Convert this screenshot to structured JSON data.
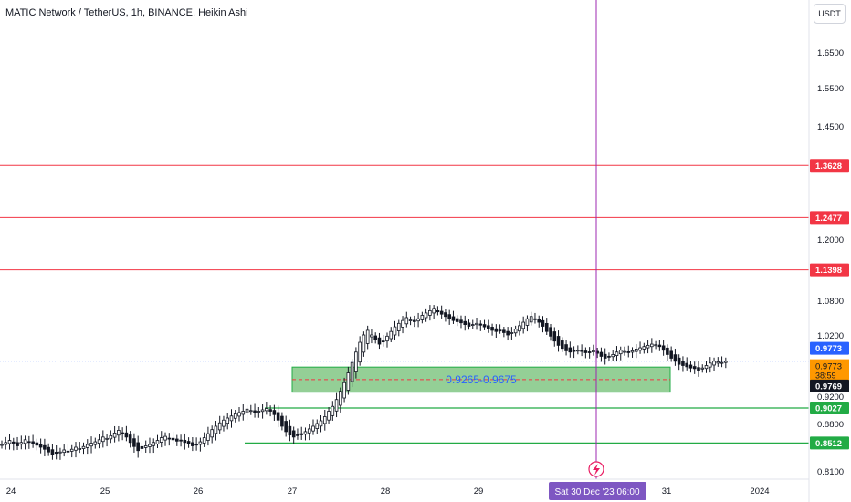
{
  "header": {
    "title": "MATIC Network / TetherUS, 1h, BINANCE, Heikin Ashi",
    "currency_button": "USDT"
  },
  "crosshair": {
    "time_label": "Sat 30 Dec '23   06:00"
  },
  "colors": {
    "resistance": "#f23645",
    "support": "#22ab45",
    "zone_fill": "#4caf50",
    "zone_text": "#2962ff",
    "crosshair": "#9c27b0",
    "last_price": "#2962ff",
    "countdown": "#ff9800",
    "up_candle": "#ffffff",
    "down_candle": "#131722"
  },
  "chart_data": {
    "type": "candlestick",
    "symbol": "MATIC Network / TetherUS",
    "interval": "1h",
    "exchange": "BINANCE",
    "style": "Heikin Ashi",
    "y_axis_ticks": [
      "1.6500",
      "1.5500",
      "1.4500",
      "1.2000",
      "1.0800",
      "1.0200",
      "0.9200",
      "0.8800",
      "0.8100"
    ],
    "x_axis_ticks": [
      "24",
      "25",
      "26",
      "27",
      "28",
      "29",
      "31",
      "2024"
    ],
    "resistance_levels": [
      {
        "value": 1.3628,
        "label": "1.3628"
      },
      {
        "value": 1.2477,
        "label": "1.2477"
      },
      {
        "value": 1.1398,
        "label": "1.1398"
      }
    ],
    "support_levels": [
      {
        "value": 0.9027,
        "label": "0.9027"
      },
      {
        "value": 0.8512,
        "label": "0.8512"
      }
    ],
    "zone": {
      "low": 0.9265,
      "high": 0.9675,
      "label": "0.9265-0.9675"
    },
    "last_price": {
      "value": 0.9773,
      "label": "0.9773"
    },
    "current_candle": {
      "value": 0.9773,
      "label": "0.9773",
      "countdown": "38:59"
    },
    "crosshair_price": {
      "value": 0.9769,
      "label": "0.9769"
    },
    "candles_hourly_close": [
      0.849,
      0.852,
      0.855,
      0.851,
      0.847,
      0.852,
      0.856,
      0.853,
      0.85,
      0.848,
      0.845,
      0.842,
      0.838,
      0.834,
      0.836,
      0.838,
      0.841,
      0.839,
      0.842,
      0.845,
      0.843,
      0.846,
      0.849,
      0.851,
      0.853,
      0.856,
      0.86,
      0.858,
      0.862,
      0.866,
      0.87,
      0.866,
      0.86,
      0.852,
      0.846,
      0.84,
      0.843,
      0.847,
      0.849,
      0.852,
      0.855,
      0.859,
      0.861,
      0.858,
      0.856,
      0.854,
      0.855,
      0.852,
      0.85,
      0.847,
      0.849,
      0.853,
      0.859,
      0.865,
      0.871,
      0.876,
      0.881,
      0.885,
      0.888,
      0.891,
      0.894,
      0.896,
      0.898,
      0.901,
      0.899,
      0.896,
      0.898,
      0.9,
      0.902,
      0.898,
      0.893,
      0.885,
      0.876,
      0.868,
      0.863,
      0.86,
      0.862,
      0.865,
      0.868,
      0.872,
      0.876,
      0.88,
      0.884,
      0.89,
      0.898,
      0.905,
      0.915,
      0.928,
      0.942,
      0.958,
      0.975,
      0.992,
      1.008,
      1.02,
      1.028,
      1.02,
      1.012,
      1.005,
      1.01,
      1.018,
      1.026,
      1.034,
      1.04,
      1.045,
      1.05,
      1.046,
      1.043,
      1.048,
      1.054,
      1.058,
      1.062,
      1.066,
      1.06,
      1.056,
      1.052,
      1.048,
      1.045,
      1.043,
      1.041,
      1.038,
      1.035,
      1.038,
      1.04,
      1.037,
      1.034,
      1.031,
      1.028,
      1.026,
      1.028,
      1.024,
      1.02,
      1.024,
      1.03,
      1.036,
      1.042,
      1.048,
      1.052,
      1.048,
      1.042,
      1.035,
      1.026,
      1.018,
      1.01,
      1.003,
      0.998,
      0.994,
      0.992,
      0.993,
      0.995,
      0.993,
      0.991,
      0.992,
      0.994,
      0.99,
      0.985,
      0.982,
      0.984,
      0.988,
      0.992,
      0.995,
      0.993,
      0.991,
      0.994,
      0.997,
      0.999,
      1.001,
      1.003,
      1.005,
      1.004,
      1.001,
      0.995,
      0.988,
      0.982,
      0.977,
      0.972,
      0.97,
      0.968,
      0.966,
      0.965,
      0.962,
      0.966,
      0.97,
      0.974,
      0.977,
      0.976,
      0.975,
      0.977
    ]
  }
}
